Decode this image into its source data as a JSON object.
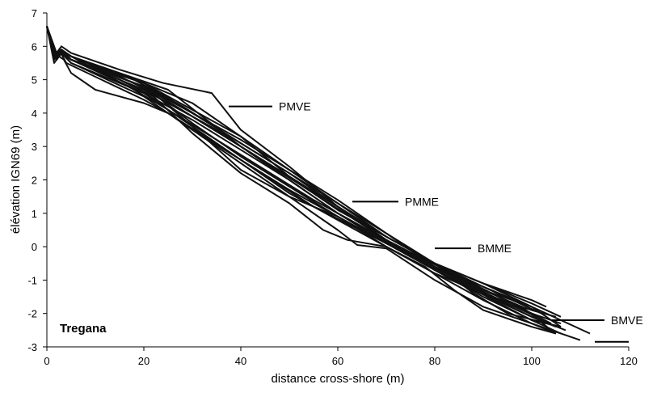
{
  "chart_data": {
    "type": "line",
    "title": "",
    "site_label": "Tregana",
    "xlabel": "distance cross-shore (m)",
    "ylabel": "élévation IGN69 (m)",
    "xlim": [
      0,
      120
    ],
    "ylim": [
      -3,
      7
    ],
    "xticks": [
      0,
      20,
      40,
      60,
      80,
      100,
      120
    ],
    "yticks": [
      -3,
      -2,
      -1,
      0,
      1,
      2,
      3,
      4,
      5,
      6,
      7
    ],
    "grid": false,
    "line_color": "#111111",
    "annotations": [
      {
        "text": "PMVE",
        "x": 37.5,
        "y": 4.2,
        "line_to_x": 46.5
      },
      {
        "text": "PMME",
        "x": 63,
        "y": 1.35,
        "line_to_x": 72.5
      },
      {
        "text": "BMME",
        "x": 80,
        "y": -0.05,
        "line_to_x": 87.5
      },
      {
        "text": "BMVE",
        "x": 104,
        "y": -2.2,
        "line_to_x": 115
      },
      {
        "text": "",
        "x": 113,
        "y": -2.85,
        "line_to_x": 120
      }
    ],
    "series": [
      {
        "x": [
          0,
          1.5,
          2.5,
          3.5,
          5,
          15,
          25,
          40,
          55,
          70,
          85,
          100,
          104
        ],
        "y": [
          6.6,
          5.6,
          5.9,
          5.8,
          5.7,
          5.2,
          4.7,
          3.0,
          1.6,
          0.2,
          -0.9,
          -2.0,
          -2.3
        ]
      },
      {
        "x": [
          0,
          1.5,
          2.5,
          3.5,
          5,
          10,
          20,
          25,
          40,
          55,
          70,
          85,
          100,
          107
        ],
        "y": [
          6.6,
          5.5,
          5.7,
          5.6,
          5.2,
          4.7,
          4.3,
          4.0,
          2.6,
          1.2,
          0.1,
          -1.1,
          -2.1,
          -2.5
        ]
      },
      {
        "x": [
          0,
          1.5,
          3,
          5,
          15,
          24,
          34,
          40,
          50,
          60,
          70,
          80,
          90,
          100,
          105
        ],
        "y": [
          6.6,
          5.7,
          6.0,
          5.8,
          5.3,
          4.9,
          4.6,
          3.5,
          2.4,
          1.2,
          0.2,
          -0.7,
          -1.4,
          -2.1,
          -2.4
        ]
      },
      {
        "x": [
          0,
          2,
          3,
          5,
          12,
          20,
          30,
          40,
          50,
          60,
          70,
          80,
          90,
          100,
          106
        ],
        "y": [
          6.6,
          5.8,
          5.9,
          5.7,
          5.3,
          4.9,
          4.3,
          3.3,
          2.1,
          1.1,
          0.3,
          -0.5,
          -1.1,
          -1.7,
          -2.1
        ]
      },
      {
        "x": [
          0,
          2,
          3,
          5,
          20,
          30,
          40,
          50,
          60,
          70,
          80,
          90,
          100,
          106
        ],
        "y": [
          6.6,
          5.6,
          5.9,
          5.6,
          4.6,
          3.8,
          2.9,
          2.0,
          1.0,
          0.1,
          -0.6,
          -1.2,
          -1.8,
          -2.4
        ]
      },
      {
        "x": [
          0,
          1.5,
          2.5,
          4,
          20,
          25,
          35,
          45,
          52,
          60,
          64,
          70,
          80,
          90,
          100,
          105
        ],
        "y": [
          6.6,
          5.6,
          5.9,
          5.5,
          4.4,
          4.0,
          3.0,
          2.0,
          1.3,
          0.5,
          0.05,
          -0.05,
          -1.0,
          -1.8,
          -2.3,
          -2.6
        ]
      },
      {
        "x": [
          0,
          2,
          3,
          5,
          15,
          22,
          30,
          40,
          50,
          60,
          70,
          80,
          90,
          100,
          110
        ],
        "y": [
          6.6,
          5.7,
          5.9,
          5.7,
          5.1,
          4.6,
          3.6,
          2.6,
          1.6,
          0.8,
          0.0,
          -0.8,
          -1.6,
          -2.3,
          -2.8
        ]
      },
      {
        "x": [
          0,
          2,
          3,
          5,
          10,
          20,
          30,
          40,
          50,
          60,
          70,
          80,
          90,
          100,
          112
        ],
        "y": [
          6.6,
          5.6,
          5.8,
          5.5,
          5.2,
          4.6,
          3.6,
          2.3,
          1.5,
          0.9,
          0.1,
          -0.5,
          -1.1,
          -1.8,
          -2.6
        ]
      },
      {
        "x": [
          0,
          2,
          3,
          5,
          15,
          22,
          30,
          40,
          50,
          57,
          62,
          70,
          78,
          84,
          90,
          100,
          105
        ],
        "y": [
          6.6,
          5.6,
          5.8,
          5.6,
          5.0,
          4.5,
          3.4,
          2.2,
          1.3,
          0.5,
          0.2,
          0.0,
          -0.6,
          -1.3,
          -1.9,
          -2.4,
          -2.6
        ]
      },
      {
        "x": [
          0,
          2,
          3,
          5,
          20,
          30,
          40,
          50,
          60,
          70,
          80,
          90,
          102
        ],
        "y": [
          6.6,
          5.6,
          5.9,
          5.6,
          4.7,
          3.9,
          3.0,
          2.1,
          1.2,
          0.3,
          -0.5,
          -1.2,
          -2.0
        ]
      },
      {
        "x": [
          0,
          2,
          3,
          5,
          18,
          28,
          40,
          50,
          60,
          70,
          80,
          90,
          100,
          106
        ],
        "y": [
          6.6,
          5.7,
          5.9,
          5.7,
          5.0,
          4.2,
          3.1,
          2.2,
          1.2,
          0.2,
          -0.7,
          -1.5,
          -2.2,
          -2.6
        ]
      },
      {
        "x": [
          0,
          2,
          3,
          5,
          20,
          30,
          40,
          50,
          60,
          70,
          80,
          90,
          100,
          103
        ],
        "y": [
          6.6,
          5.6,
          5.8,
          5.6,
          4.8,
          4.0,
          3.1,
          2.2,
          1.3,
          0.3,
          -0.5,
          -1.1,
          -1.6,
          -1.8
        ]
      },
      {
        "x": [
          0,
          2,
          3,
          5,
          18,
          25,
          35,
          45,
          55,
          65,
          75,
          85,
          95,
          104
        ],
        "y": [
          6.6,
          5.6,
          5.9,
          5.7,
          4.7,
          4.1,
          3.2,
          2.3,
          1.4,
          0.6,
          -0.3,
          -1.0,
          -1.7,
          -2.3
        ]
      },
      {
        "x": [
          0,
          2,
          3,
          5,
          20,
          35,
          50,
          60,
          70,
          80,
          92,
          100,
          106
        ],
        "y": [
          6.6,
          5.6,
          5.8,
          5.6,
          4.7,
          3.5,
          2.0,
          1.0,
          0.2,
          -0.6,
          -1.6,
          -2.2,
          -2.4
        ]
      },
      {
        "x": [
          0,
          2,
          3,
          5,
          20,
          30,
          40,
          50,
          60,
          70,
          80,
          90,
          98,
          104
        ],
        "y": [
          6.6,
          5.6,
          5.9,
          5.6,
          4.8,
          3.7,
          2.7,
          1.8,
          0.9,
          0.1,
          -0.6,
          -1.3,
          -1.8,
          -2.5
        ]
      },
      {
        "x": [
          0,
          2,
          3,
          5,
          20,
          30,
          40,
          50,
          60,
          70,
          80,
          90,
          100,
          105
        ],
        "y": [
          6.6,
          5.6,
          5.8,
          5.5,
          4.5,
          3.5,
          2.6,
          1.7,
          0.9,
          0.0,
          -0.8,
          -1.4,
          -1.9,
          -2.1
        ]
      },
      {
        "x": [
          0,
          2,
          3,
          5,
          20,
          30,
          40,
          50,
          60,
          70,
          80,
          88,
          95,
          106
        ],
        "y": [
          6.6,
          5.6,
          5.8,
          5.6,
          4.9,
          4.1,
          3.3,
          2.3,
          1.4,
          0.4,
          -0.5,
          -1.4,
          -2.0,
          -2.4
        ]
      },
      {
        "x": [
          0,
          2,
          3,
          5,
          20,
          30,
          40,
          50,
          60,
          70,
          80,
          90,
          100
        ],
        "y": [
          6.6,
          5.6,
          5.9,
          5.7,
          4.9,
          4.0,
          3.2,
          2.3,
          1.3,
          0.4,
          -0.6,
          -1.3,
          -1.8
        ]
      },
      {
        "x": [
          0,
          2,
          3,
          5,
          20,
          30,
          40,
          50,
          60,
          70,
          80,
          90,
          100,
          106
        ],
        "y": [
          6.6,
          5.6,
          5.8,
          5.6,
          4.8,
          3.9,
          3.0,
          2.1,
          1.2,
          0.2,
          -0.6,
          -1.4,
          -2.0,
          -2.3
        ]
      }
    ]
  }
}
